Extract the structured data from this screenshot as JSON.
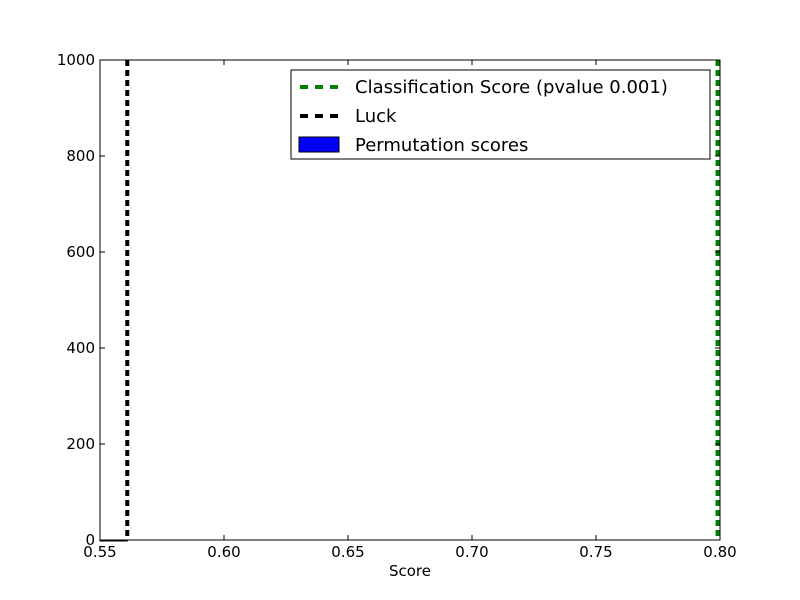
{
  "chart_data": {
    "type": "histogram",
    "xlabel": "Score",
    "ylabel": "",
    "xlim": [
      0.55,
      0.8
    ],
    "ylim": [
      0,
      1000
    ],
    "xticks": [
      "0.55",
      "0.60",
      "0.65",
      "0.70",
      "0.75",
      "0.80"
    ],
    "xtick_values": [
      0.55,
      0.6,
      0.65,
      0.7,
      0.75,
      0.8
    ],
    "yticks": [
      "0",
      "200",
      "400",
      "600",
      "800",
      "1000"
    ],
    "ytick_values": [
      0,
      200,
      400,
      600,
      800,
      1000
    ],
    "grid": false,
    "legend_position": "top-right",
    "series": [
      {
        "name": "Classification Score (pvalue 0.001)",
        "kind": "vline",
        "x": 0.799,
        "color": "#008000",
        "style": "dashed"
      },
      {
        "name": "Luck",
        "kind": "vline",
        "x": 0.561,
        "color": "#000000",
        "style": "dashed"
      },
      {
        "name": "Permutation scores",
        "kind": "histogram",
        "x_range": [
          0.55,
          0.561
        ],
        "values": [
          0
        ],
        "color": "#0000ff"
      }
    ]
  },
  "legend": {
    "items": [
      {
        "label": "Classification Score (pvalue 0.001)"
      },
      {
        "label": "Luck"
      },
      {
        "label": "Permutation scores"
      }
    ]
  }
}
